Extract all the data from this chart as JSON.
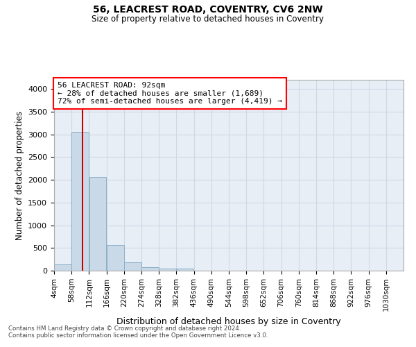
{
  "title1": "56, LEACREST ROAD, COVENTRY, CV6 2NW",
  "title2": "Size of property relative to detached houses in Coventry",
  "xlabel": "Distribution of detached houses by size in Coventry",
  "ylabel": "Number of detached properties",
  "annotation_line1": "56 LEACREST ROAD: 92sqm",
  "annotation_line2": "← 28% of detached houses are smaller (1,689)",
  "annotation_line3": "72% of semi-detached houses are larger (4,419) →",
  "bin_edges": [
    4,
    58,
    112,
    166,
    220,
    274,
    328,
    382,
    436,
    490,
    544,
    598,
    652,
    706,
    760,
    814,
    868,
    922,
    976,
    1030,
    1084
  ],
  "bar_heights": [
    130,
    3060,
    2060,
    560,
    190,
    75,
    50,
    45,
    0,
    0,
    0,
    0,
    0,
    0,
    0,
    0,
    0,
    0,
    0,
    0
  ],
  "bar_color": "#c9d9e8",
  "bar_edge_color": "#8bafc8",
  "vline_color": "#cc0000",
  "vline_x": 92,
  "grid_color": "#d0d8e8",
  "background_color": "#e8eef5",
  "ylim": [
    0,
    4200
  ],
  "yticks": [
    0,
    500,
    1000,
    1500,
    2000,
    2500,
    3000,
    3500,
    4000
  ],
  "footer1": "Contains HM Land Registry data © Crown copyright and database right 2024.",
  "footer2": "Contains public sector information licensed under the Open Government Licence v3.0."
}
